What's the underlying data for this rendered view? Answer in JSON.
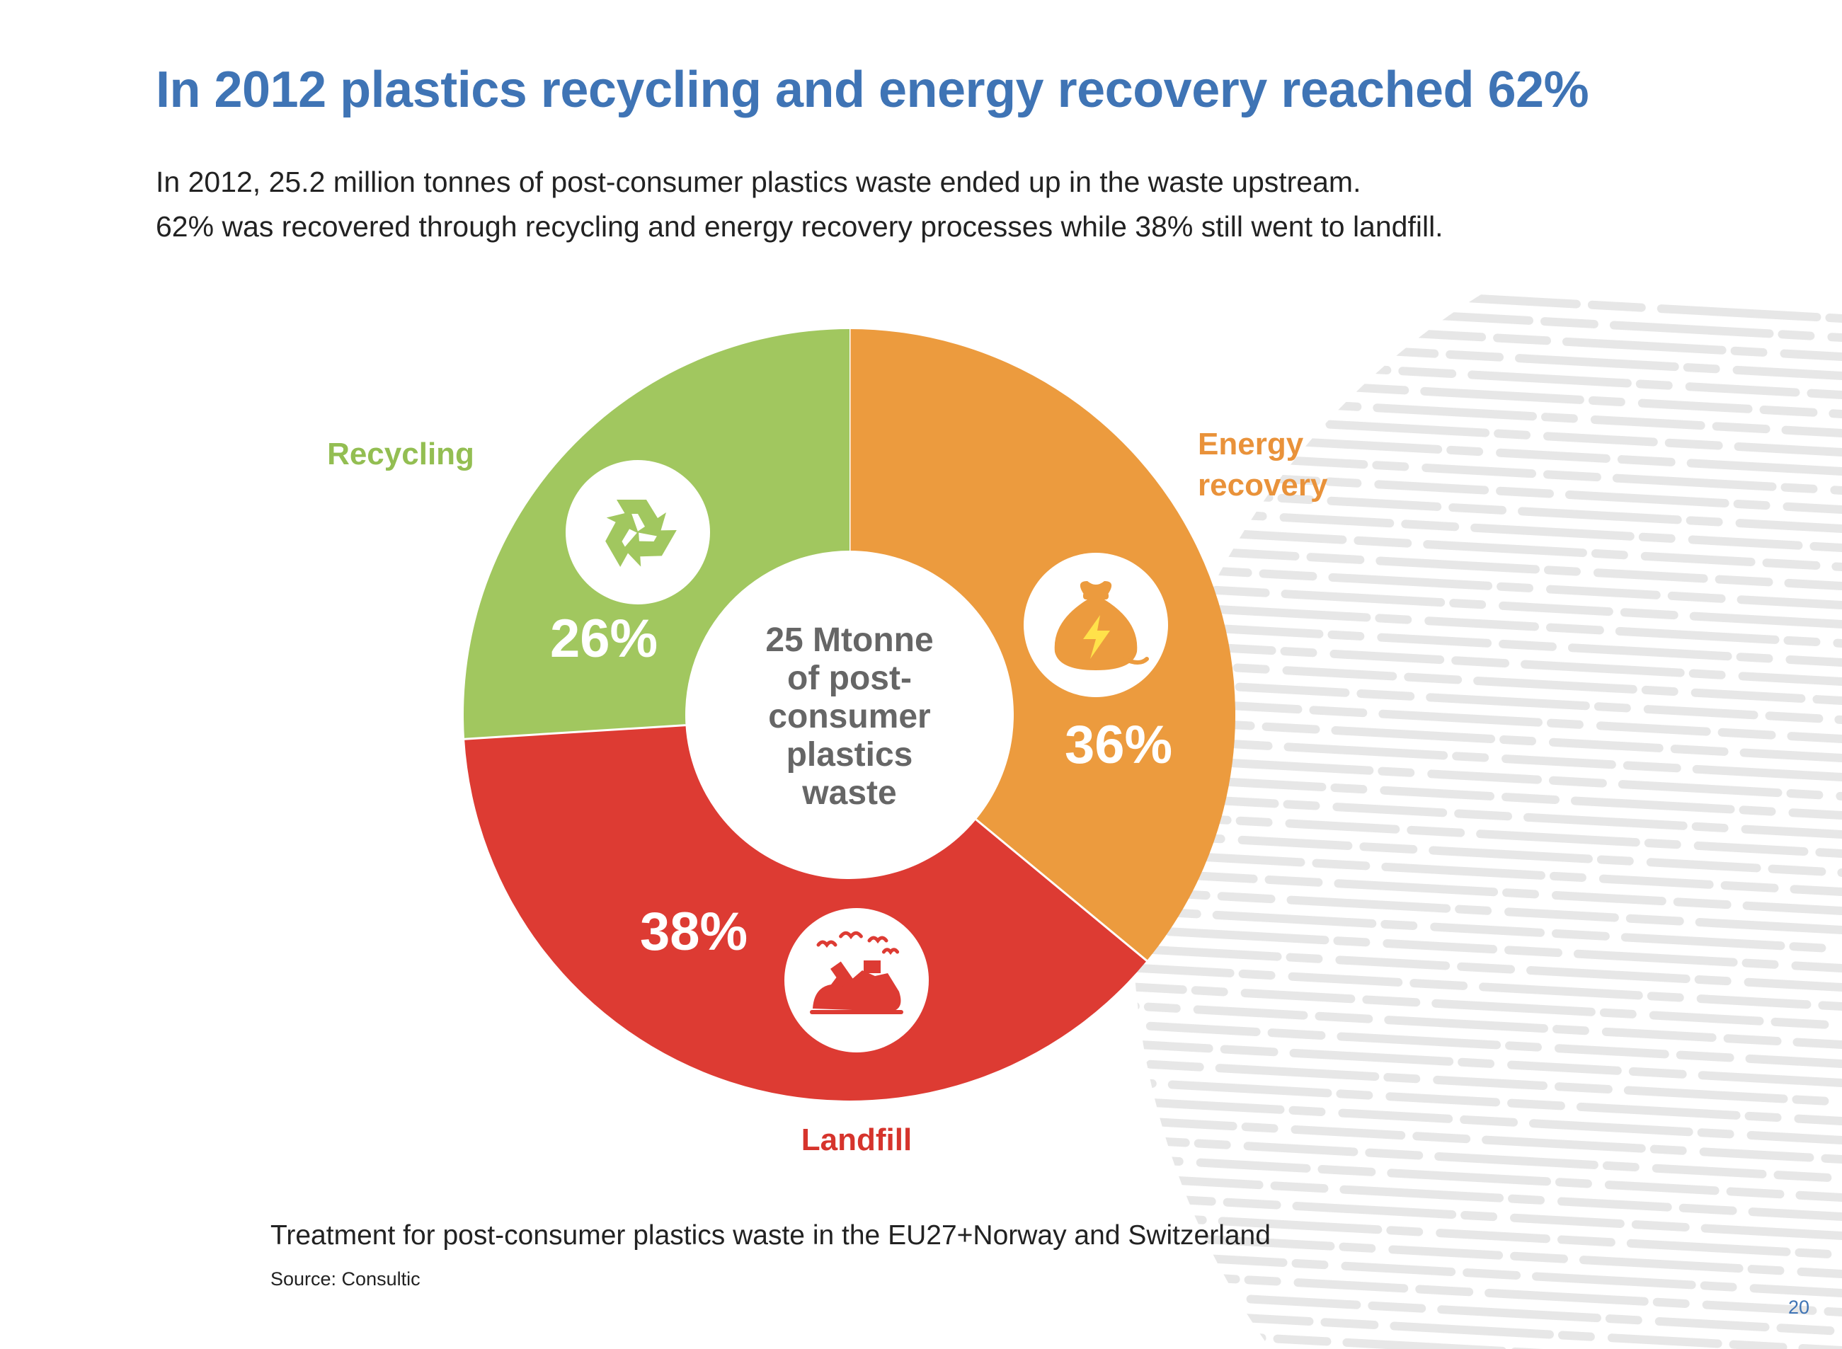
{
  "heading": "In 2012 plastics recycling and energy recovery reached 62%",
  "intro": {
    "line1": "In 2012, 25.2 million tonnes of post-consumer plastics waste ended up in the waste upstream.",
    "line2": "62% was recovered through recycling and energy recovery processes while 38% still went to landfill."
  },
  "chart_data": {
    "type": "pie",
    "subtype": "donut",
    "center_label": [
      "25 Mtonne",
      "of post-",
      "consumer",
      "plastics",
      "waste"
    ],
    "slices": [
      {
        "name": "Energy recovery",
        "label_lines": [
          "Energy",
          "recovery"
        ],
        "value": 36,
        "value_label": "36%",
        "color": "#ec9b3e",
        "label_color": "#e9923a",
        "icon": "money-bag-lightning-icon"
      },
      {
        "name": "Landfill",
        "label_lines": [
          "Landfill"
        ],
        "value": 38,
        "value_label": "38%",
        "color": "#dd3b33",
        "label_color": "#d6342c",
        "icon": "landfill-birds-icon"
      },
      {
        "name": "Recycling",
        "label_lines": [
          "Recycling"
        ],
        "value": 26,
        "value_label": "26%",
        "color": "#a1c75f",
        "label_color": "#93be52",
        "icon": "recycle-icon"
      }
    ]
  },
  "caption": "Treatment for post-consumer plastics waste in the EU27+Norway and Switzerland",
  "source": "Source: Consultic",
  "page_number": "20",
  "colors": {
    "title": "#3f74b5",
    "text": "#222222",
    "center_text": "#666666",
    "background_globe": "#e7e7e7"
  }
}
